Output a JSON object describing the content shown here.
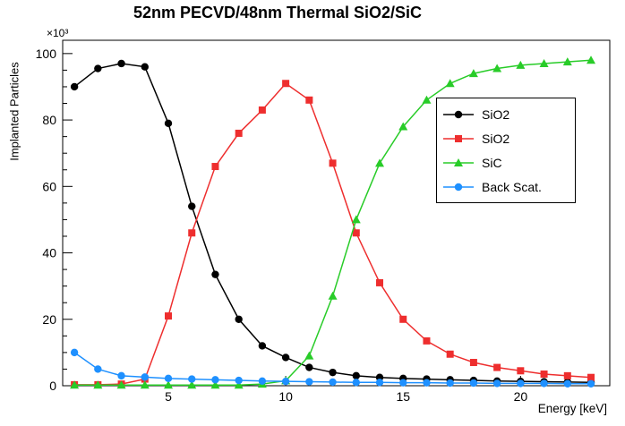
{
  "chart_data": {
    "type": "line",
    "title": "52nm PECVD/48nm Thermal SiO2/SiC",
    "xlabel": "Energy [keV]",
    "ylabel": "Implanted Particles",
    "y_multiplier": "×10³",
    "xlim": [
      0.5,
      23.8
    ],
    "ylim": [
      0,
      104
    ],
    "xticks": [
      5,
      10,
      15,
      20
    ],
    "yticks": [
      0,
      20,
      40,
      60,
      80,
      100
    ],
    "x_minor_step": 1,
    "y_minor_step": 5,
    "grid": false,
    "legend_position": "right",
    "x": [
      1,
      2,
      3,
      4,
      5,
      6,
      7,
      8,
      9,
      10,
      11,
      12,
      13,
      14,
      15,
      16,
      17,
      18,
      19,
      20,
      21,
      22,
      23
    ],
    "series": [
      {
        "name": "SiO2",
        "marker": "circle",
        "color": "#000000",
        "values": [
          90,
          95.5,
          97,
          96,
          79,
          54,
          33.5,
          20,
          12,
          8.5,
          5.5,
          4,
          3,
          2.5,
          2.2,
          2,
          1.8,
          1.6,
          1.4,
          1.3,
          1.2,
          1.1,
          1
        ]
      },
      {
        "name": "SiO2",
        "marker": "square",
        "color": "#ee2e2e",
        "values": [
          0.3,
          0.3,
          0.5,
          2,
          21,
          46,
          66,
          76,
          83,
          91,
          86,
          67,
          46,
          31,
          20,
          13.5,
          9.5,
          7,
          5.5,
          4.5,
          3.5,
          3,
          2.5
        ]
      },
      {
        "name": "SiC",
        "marker": "triangle",
        "color": "#28cc28",
        "values": [
          0.2,
          0.2,
          0.2,
          0.2,
          0.2,
          0.2,
          0.2,
          0.2,
          0.5,
          1.5,
          9,
          27,
          50,
          67,
          78,
          86,
          91,
          94,
          95.5,
          96.5,
          97,
          97.5,
          98
        ]
      },
      {
        "name": "Back Scat.",
        "marker": "circle",
        "color": "#1e90ff",
        "values": [
          10,
          5,
          3,
          2.6,
          2.2,
          2,
          1.8,
          1.6,
          1.4,
          1.3,
          1.2,
          1.1,
          1,
          1,
          0.9,
          0.9,
          0.8,
          0.8,
          0.7,
          0.7,
          0.7,
          0.6,
          0.6
        ]
      }
    ]
  }
}
